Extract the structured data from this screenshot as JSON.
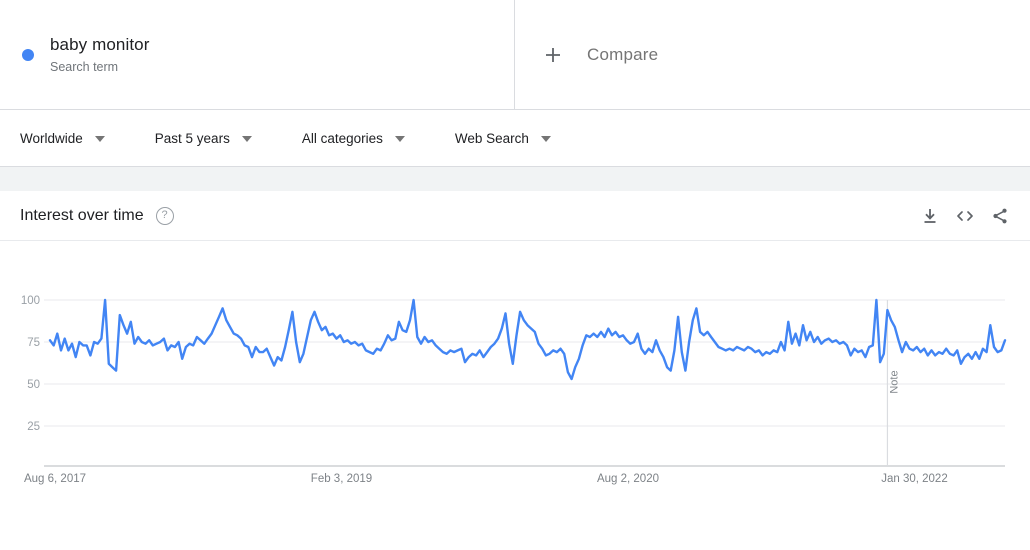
{
  "header": {
    "term": "baby monitor",
    "term_type": "Search term",
    "compare_label": "Compare",
    "legend_dot_color": "#4285f4"
  },
  "filters": {
    "region": "Worldwide",
    "time": "Past 5 years",
    "category": "All categories",
    "search_type": "Web Search"
  },
  "chart_card": {
    "title": "Interest over time",
    "help_glyph": "?",
    "action_icons": [
      "download",
      "embed",
      "share"
    ]
  },
  "chart_data": {
    "type": "line",
    "title": "Interest over time",
    "series_name": "baby monitor",
    "line_color": "#4285f4",
    "grid": true,
    "ylim": [
      0,
      100
    ],
    "y_ticks": [
      100,
      75,
      50,
      25
    ],
    "x_tick_labels": [
      "Aug 6, 2017",
      "Feb 3, 2019",
      "Aug 2, 2020",
      "Jan 30, 2022"
    ],
    "x_tick_weeks": [
      0,
      78,
      156,
      234
    ],
    "note_label": "Note",
    "note_week": 228,
    "values": [
      76,
      73,
      80,
      70,
      77,
      70,
      74,
      66,
      75,
      73,
      73,
      67,
      75,
      74,
      77,
      100,
      62,
      60,
      58,
      91,
      85,
      80,
      87,
      74,
      78,
      75,
      74,
      76,
      73,
      74,
      75,
      77,
      70,
      73,
      72,
      75,
      65,
      72,
      74,
      73,
      78,
      76,
      74,
      77,
      80,
      85,
      90,
      95,
      88,
      84,
      80,
      79,
      77,
      73,
      72,
      66,
      72,
      69,
      69,
      71,
      66,
      61,
      66,
      64,
      72,
      82,
      93,
      75,
      63,
      68,
      78,
      88,
      93,
      87,
      82,
      84,
      79,
      80,
      77,
      79,
      75,
      76,
      74,
      75,
      73,
      74,
      70,
      69,
      68,
      71,
      70,
      74,
      79,
      76,
      77,
      87,
      82,
      81,
      88,
      100,
      78,
      74,
      78,
      75,
      76,
      73,
      71,
      69,
      68,
      70,
      69,
      70,
      71,
      63,
      66,
      68,
      67,
      70,
      66,
      69,
      72,
      74,
      77,
      83,
      92,
      74,
      62,
      79,
      93,
      88,
      85,
      83,
      81,
      74,
      71,
      67,
      68,
      70,
      69,
      71,
      68,
      57,
      53,
      60,
      65,
      73,
      79,
      78,
      80,
      78,
      81,
      78,
      83,
      79,
      81,
      78,
      79,
      76,
      74,
      75,
      80,
      71,
      68,
      71,
      69,
      76,
      70,
      66,
      60,
      58,
      70,
      90,
      69,
      58,
      75,
      88,
      95,
      81,
      79,
      81,
      78,
      75,
      72,
      71,
      70,
      71,
      70,
      72,
      71,
      70,
      72,
      71,
      69,
      70,
      67,
      69,
      68,
      70,
      69,
      75,
      70,
      87,
      74,
      80,
      73,
      85,
      76,
      81,
      75,
      78,
      74,
      76,
      77,
      75,
      76,
      74,
      75,
      73,
      67,
      71,
      69,
      70,
      66,
      72,
      73,
      100,
      63,
      68,
      94,
      88,
      84,
      76,
      69,
      75,
      71,
      70,
      72,
      69,
      71,
      67,
      70,
      67,
      69,
      68,
      71,
      68,
      67,
      70,
      62,
      66,
      68,
      65,
      69,
      65,
      71,
      69,
      85,
      72,
      69,
      70,
      76
    ]
  }
}
